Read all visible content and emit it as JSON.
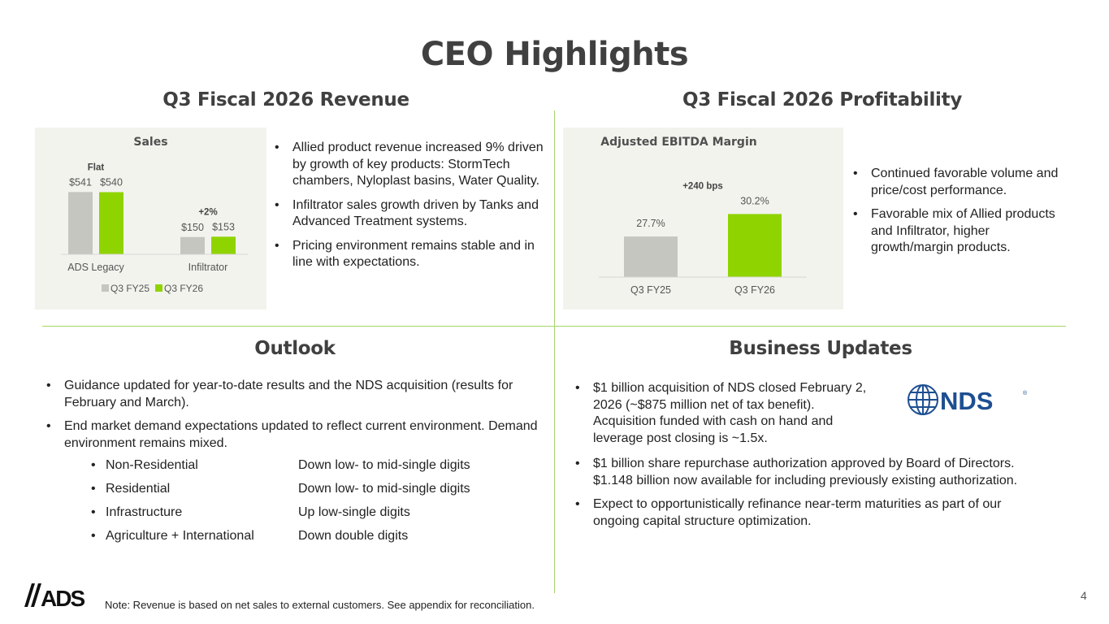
{
  "page": {
    "title": "CEO Highlights",
    "page_number": "4",
    "note": "Note: Revenue is based on net sales to external customers. See appendix for reconciliation."
  },
  "revenue": {
    "heading": "Q3 Fiscal 2026 Revenue",
    "bullets": [
      "Allied product revenue increased 9% driven by growth of key products: StormTech chambers, Nyloplast basins, Water Quality.",
      "Infiltrator sales growth driven by Tanks and Advanced Treatment systems.",
      "Pricing environment remains stable and in line with expectations."
    ]
  },
  "profitability": {
    "heading": "Q3 Fiscal 2026 Profitability",
    "bullets": [
      "Continued favorable volume and price/cost performance.",
      "Favorable mix of Allied products and Infiltrator, higher growth/margin products."
    ]
  },
  "outlook": {
    "heading": "Outlook",
    "bullets": [
      "Guidance updated for year-to-date results and the NDS acquisition (results for February and March).",
      "End market demand expectations updated to reflect current environment. Demand environment remains mixed."
    ],
    "markets": [
      {
        "name": "Non-Residential",
        "expectation": "Down low- to mid-single digits"
      },
      {
        "name": "Residential",
        "expectation": "Down low- to mid-single digits"
      },
      {
        "name": "Infrastructure",
        "expectation": "Up low-single digits"
      },
      {
        "name": "Agriculture + International",
        "expectation": "Down double digits"
      }
    ]
  },
  "business": {
    "heading": "Business Updates",
    "logo_text": "NDS",
    "bullets": [
      "$1 billion acquisition of NDS closed February 2, 2026 (~$875 million net of tax benefit). Acquisition funded with cash on hand and leverage post closing is ~1.5x.",
      "$1 billion share repurchase authorization approved by Board of Directors. $1.148 billion now available for including previously existing authorization.",
      "Expect to opportunistically refinance near-term maturities as part of our ongoing capital structure optimization."
    ]
  },
  "logo": {
    "text": "ADS"
  },
  "colors": {
    "accent_green": "#8fd400",
    "legacy_gray": "#c5c6c0",
    "divider": "#a6d66b",
    "heading": "#404040"
  },
  "chart_data": [
    {
      "type": "bar",
      "title": "Sales",
      "categories": [
        "ADS Legacy",
        "Infiltrator"
      ],
      "series": [
        {
          "name": "Q3 FY25",
          "values": [
            541,
            150
          ]
        },
        {
          "name": "Q3 FY26",
          "values": [
            540,
            153
          ]
        }
      ],
      "value_labels": [
        [
          "$541",
          "$150"
        ],
        [
          "$540",
          "$153"
        ]
      ],
      "annotations": [
        "Flat",
        "+2%"
      ],
      "ylim": [
        0,
        600
      ],
      "legend": "bottom"
    },
    {
      "type": "bar",
      "title": "Adjusted EBITDA Margin",
      "categories": [
        "Q3 FY25",
        "Q3 FY26"
      ],
      "values": [
        27.7,
        30.2
      ],
      "value_labels": [
        "27.7%",
        "30.2%"
      ],
      "annotations": [
        "+240 bps"
      ],
      "ylim": [
        23.2,
        31.5
      ]
    }
  ]
}
